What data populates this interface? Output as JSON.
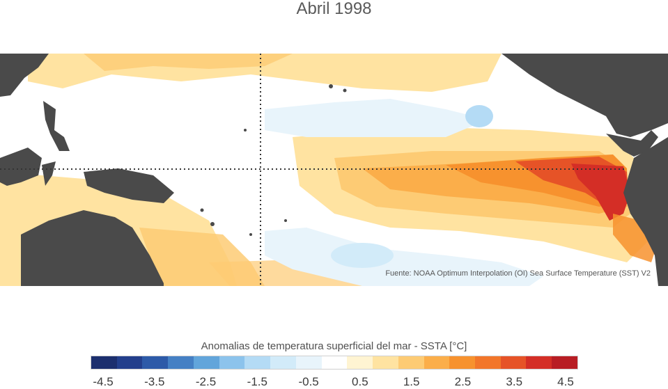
{
  "title": "Abril 1998",
  "source_note": "Fuente: NOAA Optimum Interpolation (OI) Sea Surface Temperature (SST) V2",
  "colorbar": {
    "title": "Anomalias de temperatura superficial del mar - SSTA  [°C]",
    "colors": [
      "#1c2f6e",
      "#233f8c",
      "#2d5aa8",
      "#4580c4",
      "#62a5db",
      "#8cc3ec",
      "#b4dbf5",
      "#d2ebf9",
      "#e8f4fb",
      "#ffffff",
      "#fff4d2",
      "#ffe3a1",
      "#fdcb74",
      "#fbae4a",
      "#f7922e",
      "#f2762a",
      "#e65327",
      "#d42e26",
      "#b81d24"
    ],
    "ticks": [
      "-4.5",
      "-3.5",
      "-2.5",
      "-1.5",
      "-0.5",
      "0.5",
      "1.5",
      "2.5",
      "3.5",
      "4.5"
    ],
    "range": [
      -5,
      5
    ]
  },
  "map": {
    "land_color": "#4a4a4a",
    "guide_lines": "equator and dateline (dotted)"
  }
}
